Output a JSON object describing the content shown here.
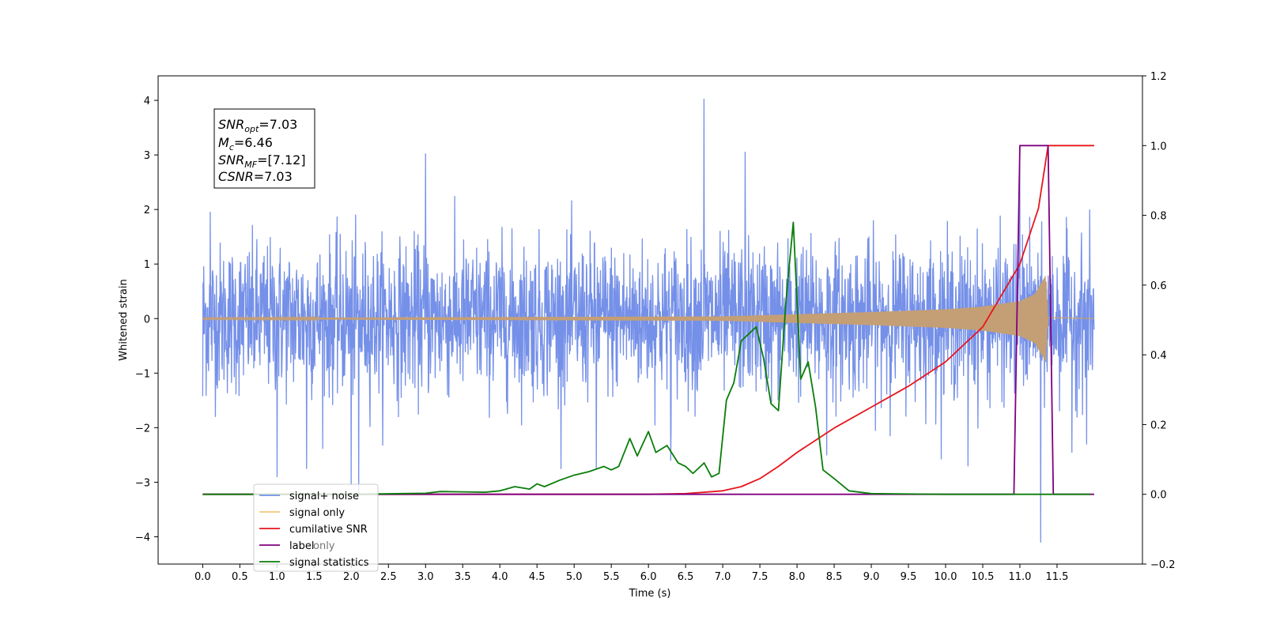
{
  "chart_data": {
    "type": "line",
    "xlabel": "Time (s)",
    "ylabel": "Whitened strain",
    "xlim": [
      -0.6,
      12.65
    ],
    "ylim": [
      -4.5,
      4.45
    ],
    "ylim_right": [
      -0.2,
      1.2
    ],
    "x_ticks": [
      "0.0",
      "0.5",
      "1.0",
      "1.5",
      "2.0",
      "2.5",
      "3.0",
      "3.5",
      "4.0",
      "4.5",
      "5.0",
      "5.5",
      "6.0",
      "6.5",
      "7.0",
      "7.5",
      "8.0",
      "8.5",
      "9.0",
      "9.5",
      "10.0",
      "10.5",
      "11.0",
      "11.5"
    ],
    "y_ticks": [
      "4",
      "3",
      "2",
      "1",
      "0",
      "−1",
      "−2",
      "−3",
      "−4"
    ],
    "y_ticks_right": [
      "1.2",
      "1.0",
      "0.8",
      "0.6",
      "0.4",
      "0.2",
      "0.0",
      "−0.2"
    ],
    "annotation": {
      "snr_opt": {
        "base": "SNR",
        "sub": "opt",
        "value": "=7.03"
      },
      "mc": {
        "base": "M",
        "sub": "c",
        "value": "=6.46"
      },
      "snr_mf": {
        "base": "SNR",
        "sub": "MF",
        "value": "=[7.12]"
      },
      "csnr": {
        "base": "CSNR",
        "value": "=7.03"
      }
    },
    "legend": {
      "placement": "lower-left",
      "entries": [
        {
          "label": "signal+ noise",
          "color": "#7590e8"
        },
        {
          "label": "signal only",
          "color": "#f5c97a"
        },
        {
          "label": "cumilative SNR",
          "color": "#e8141c"
        },
        {
          "label": "label",
          "color": "#800080"
        },
        {
          "label": "signal statistics",
          "color": "#0a7d0a"
        }
      ],
      "hidden_entry": "label only"
    },
    "series": [
      {
        "name": "signal+ noise",
        "axis": "left",
        "color": "#7590e8",
        "kind": "noise",
        "x_start": 0.0,
        "x_end": 12.0,
        "sigma": 0.95,
        "spikes": [
          [
            0.0,
            -1.42
          ],
          [
            0.1,
            1.95
          ],
          [
            1.0,
            -2.9
          ],
          [
            1.4,
            -2.75
          ],
          [
            2.0,
            -3.05
          ],
          [
            2.1,
            -3.2
          ],
          [
            3.0,
            3.02
          ],
          [
            5.3,
            -2.75
          ],
          [
            6.75,
            4.02
          ],
          [
            6.3,
            -2.6
          ],
          [
            7.3,
            3.05
          ],
          [
            8.4,
            -2.5
          ],
          [
            10.3,
            -2.7
          ],
          [
            11.0,
            3.15
          ],
          [
            11.28,
            -4.1
          ],
          [
            11.7,
            -2.45
          ],
          [
            11.9,
            -2.3
          ]
        ]
      },
      {
        "name": "signal only",
        "axis": "left",
        "color": "#c49f75",
        "kind": "chirp",
        "x_start": 0.0,
        "x_end": 11.38,
        "envelope": [
          [
            0.0,
            0.01
          ],
          [
            7.0,
            0.04
          ],
          [
            8.0,
            0.08
          ],
          [
            9.0,
            0.12
          ],
          [
            10.0,
            0.17
          ],
          [
            10.5,
            0.22
          ],
          [
            11.0,
            0.32
          ],
          [
            11.2,
            0.45
          ],
          [
            11.35,
            0.8
          ],
          [
            11.38,
            0.02
          ]
        ]
      },
      {
        "name": "cumilative SNR",
        "axis": "right",
        "color": "#e8141c",
        "x": [
          0.0,
          5.0,
          6.0,
          6.5,
          7.0,
          7.25,
          7.5,
          7.75,
          8.0,
          8.5,
          9.0,
          9.5,
          10.0,
          10.5,
          11.0,
          11.25,
          11.38,
          12.0
        ],
        "y": [
          0.0,
          0.0,
          0.0,
          0.002,
          0.01,
          0.022,
          0.045,
          0.08,
          0.12,
          0.19,
          0.25,
          0.31,
          0.38,
          0.48,
          0.66,
          0.82,
          1.0,
          1.0
        ]
      },
      {
        "name": "label",
        "axis": "right",
        "color": "#800080",
        "x": [
          0.0,
          10.92,
          11.0,
          11.38,
          11.45,
          12.0
        ],
        "y": [
          0.0,
          0.0,
          1.0,
          1.0,
          0.0,
          0.0
        ]
      },
      {
        "name": "signal statistics",
        "axis": "right",
        "color": "#0a7d0a",
        "x": [
          0.0,
          2.0,
          3.0,
          3.2,
          3.5,
          3.8,
          4.0,
          4.2,
          4.4,
          4.5,
          4.6,
          4.8,
          5.0,
          5.2,
          5.4,
          5.5,
          5.6,
          5.75,
          5.85,
          6.0,
          6.1,
          6.25,
          6.4,
          6.5,
          6.6,
          6.75,
          6.85,
          6.95,
          7.05,
          7.15,
          7.25,
          7.35,
          7.45,
          7.55,
          7.65,
          7.75,
          7.85,
          7.95,
          8.05,
          8.15,
          8.25,
          8.35,
          8.5,
          8.7,
          9.0,
          10.0,
          11.0,
          11.95
        ],
        "y": [
          0.0,
          0.0,
          0.003,
          0.008,
          0.007,
          0.006,
          0.01,
          0.022,
          0.015,
          0.03,
          0.022,
          0.04,
          0.055,
          0.065,
          0.08,
          0.07,
          0.08,
          0.16,
          0.11,
          0.18,
          0.12,
          0.14,
          0.09,
          0.08,
          0.06,
          0.09,
          0.05,
          0.06,
          0.27,
          0.32,
          0.44,
          0.46,
          0.48,
          0.39,
          0.26,
          0.24,
          0.55,
          0.78,
          0.33,
          0.38,
          0.25,
          0.07,
          0.045,
          0.01,
          0.002,
          0.0,
          0.0,
          0.0
        ]
      }
    ]
  }
}
